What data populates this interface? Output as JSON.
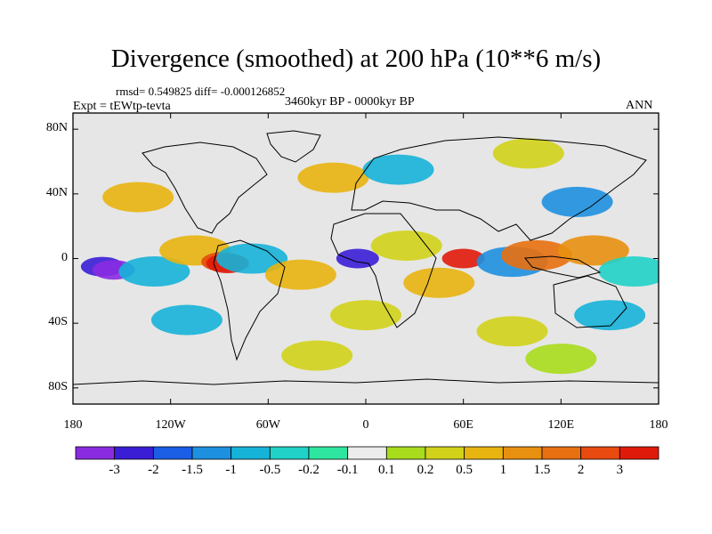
{
  "title": "Divergence (smoothed) at 200 hPa (10**6 m/s)",
  "stats": "rmsd= 0.549825 diff= -0.000126852",
  "experiment": "Expt = tEWtp-tevta",
  "period": "3460kyr BP - 0000kyr BP",
  "season": "ANN",
  "map": {
    "projection": "cylindrical equidistant",
    "lon_range": [
      -180,
      180
    ],
    "lat_range": [
      -90,
      90
    ],
    "lat_ticks": [
      {
        "lat": 80,
        "label": "80N"
      },
      {
        "lat": 40,
        "label": "40N"
      },
      {
        "lat": 0,
        "label": "0"
      },
      {
        "lat": -40,
        "label": "40S"
      },
      {
        "lat": -80,
        "label": "80S"
      }
    ],
    "lon_ticks": [
      {
        "lon": -180,
        "label": "180"
      },
      {
        "lon": -120,
        "label": "120W"
      },
      {
        "lon": -60,
        "label": "60W"
      },
      {
        "lon": 0,
        "label": "0"
      },
      {
        "lon": 60,
        "label": "60E"
      },
      {
        "lon": 120,
        "label": "120E"
      },
      {
        "lon": 180,
        "label": "180"
      }
    ]
  },
  "colorbar": {
    "colors": [
      "#8a2be2",
      "#3a1ed6",
      "#1a5ee6",
      "#1e90e0",
      "#16b3d8",
      "#20d2c8",
      "#2ee6a0",
      "#ececec",
      "#a8dc1c",
      "#d2d21a",
      "#e8b410",
      "#e89010",
      "#e87010",
      "#e84a10",
      "#e01a0a"
    ],
    "labels": [
      "-3",
      "-2",
      "-1.5",
      "-1",
      "-0.5",
      "-0.2",
      "-0.1",
      "0.1",
      "0.2",
      "0.5",
      "1",
      "1.5",
      "2",
      "3"
    ]
  },
  "field_features": [
    {
      "lon": -162,
      "lat": -5,
      "level": 1
    },
    {
      "lon": -155,
      "lat": -7,
      "level": 0
    },
    {
      "lon": -130,
      "lat": -8,
      "level": 4
    },
    {
      "lon": -105,
      "lat": 5,
      "level": 10
    },
    {
      "lon": -88,
      "lat": -2,
      "level": 13
    },
    {
      "lon": -85,
      "lat": -3,
      "level": 14
    },
    {
      "lon": -70,
      "lat": 0,
      "level": 4
    },
    {
      "lon": -40,
      "lat": -10,
      "level": 10
    },
    {
      "lon": -5,
      "lat": 0,
      "level": 1
    },
    {
      "lon": 25,
      "lat": 8,
      "level": 9
    },
    {
      "lon": 45,
      "lat": -15,
      "level": 10
    },
    {
      "lon": 60,
      "lat": 0,
      "level": 14
    },
    {
      "lon": 90,
      "lat": -2,
      "level": 3
    },
    {
      "lon": 105,
      "lat": 2,
      "level": 12
    },
    {
      "lon": 140,
      "lat": 5,
      "level": 11
    },
    {
      "lon": 165,
      "lat": -8,
      "level": 5
    },
    {
      "lon": 130,
      "lat": 35,
      "level": 3
    },
    {
      "lon": -140,
      "lat": 38,
      "level": 10
    },
    {
      "lon": -20,
      "lat": 50,
      "level": 10
    },
    {
      "lon": 20,
      "lat": 55,
      "level": 4
    },
    {
      "lon": 100,
      "lat": 65,
      "level": 9
    },
    {
      "lon": -110,
      "lat": -38,
      "level": 4
    },
    {
      "lon": 0,
      "lat": -35,
      "level": 9
    },
    {
      "lon": 90,
      "lat": -45,
      "level": 9
    },
    {
      "lon": 150,
      "lat": -35,
      "level": 4
    },
    {
      "lon": -30,
      "lat": -60,
      "level": 9
    },
    {
      "lon": 120,
      "lat": -62,
      "level": 8
    }
  ]
}
